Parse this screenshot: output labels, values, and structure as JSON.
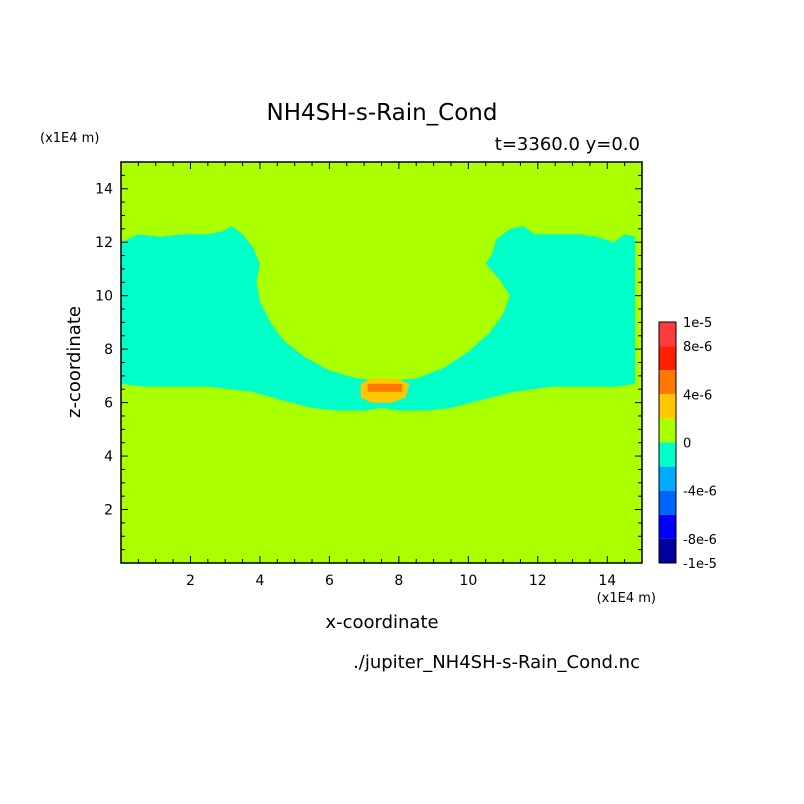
{
  "figure": {
    "subtitle": "t=3360.0 y=0.0",
    "x_scale_label": "(x1E4 m)",
    "y_scale_label": "(x1E4 m)",
    "source_file": "./jupiter_NH4SH-s-Rain_Cond.nc"
  },
  "chart_data": {
    "type": "heatmap",
    "title": "NH4SH-s-Rain_Cond",
    "xlabel": "x-coordinate",
    "ylabel": "z-coordinate",
    "xlim": [
      0,
      15
    ],
    "ylim": [
      0,
      15
    ],
    "x_ticks": [
      "2",
      "4",
      "6",
      "8",
      "10",
      "12",
      "14"
    ],
    "y_ticks": [
      "2",
      "4",
      "6",
      "8",
      "10",
      "12",
      "14"
    ],
    "background_value": 0,
    "regions": [
      {
        "value_level": "-2e-6",
        "color": "#00FFC8",
        "description_shape": "negative band",
        "polygon": [
          [
            0,
            6.7
          ],
          [
            0.7,
            6.6
          ],
          [
            2.5,
            6.6
          ],
          [
            3.8,
            6.4
          ],
          [
            4.6,
            6.1
          ],
          [
            5.5,
            5.8
          ],
          [
            6.2,
            5.7
          ],
          [
            7,
            5.7
          ],
          [
            7.5,
            5.8
          ],
          [
            8,
            5.7
          ],
          [
            8.8,
            5.7
          ],
          [
            9.5,
            5.8
          ],
          [
            10.4,
            6.1
          ],
          [
            11.3,
            6.4
          ],
          [
            12.4,
            6.6
          ],
          [
            14.3,
            6.6
          ],
          [
            14.8,
            6.7
          ],
          [
            14.8,
            12.2
          ],
          [
            14.5,
            12.3
          ],
          [
            14.2,
            12.0
          ],
          [
            13.7,
            12.2
          ],
          [
            13.2,
            12.3
          ],
          [
            12.5,
            12.3
          ],
          [
            11.9,
            12.3
          ],
          [
            11.6,
            12.6
          ],
          [
            11.2,
            12.5
          ],
          [
            10.8,
            12.1
          ],
          [
            10.7,
            11.6
          ],
          [
            10.5,
            11.2
          ],
          [
            10.9,
            10.6
          ],
          [
            11.2,
            10.0
          ],
          [
            11.0,
            9.3
          ],
          [
            10.6,
            8.6
          ],
          [
            10.0,
            7.9
          ],
          [
            9.3,
            7.3
          ],
          [
            8.5,
            6.9
          ],
          [
            7.6,
            6.8
          ],
          [
            6.8,
            6.9
          ],
          [
            6.0,
            7.2
          ],
          [
            5.3,
            7.7
          ],
          [
            4.7,
            8.3
          ],
          [
            4.3,
            9.0
          ],
          [
            4.0,
            9.8
          ],
          [
            3.9,
            10.5
          ],
          [
            4.0,
            11.2
          ],
          [
            3.8,
            11.8
          ],
          [
            3.5,
            12.3
          ],
          [
            3.2,
            12.6
          ],
          [
            2.9,
            12.4
          ],
          [
            2.5,
            12.3
          ],
          [
            1.8,
            12.3
          ],
          [
            1.1,
            12.2
          ],
          [
            0.5,
            12.3
          ],
          [
            0,
            12.0
          ]
        ]
      },
      {
        "value_level": "2e-6",
        "color": "#FFC800",
        "description_shape": "positive core",
        "polygon": [
          [
            6.9,
            6.2
          ],
          [
            7.2,
            6.0
          ],
          [
            7.8,
            6.0
          ],
          [
            8.2,
            6.2
          ],
          [
            8.3,
            6.7
          ],
          [
            7.9,
            6.9
          ],
          [
            7.2,
            6.9
          ],
          [
            6.9,
            6.7
          ]
        ]
      },
      {
        "value_level": "6e-6",
        "color": "#FF7800",
        "description_shape": "strong positive core",
        "polygon": [
          [
            7.1,
            6.4
          ],
          [
            8.1,
            6.4
          ],
          [
            8.1,
            6.7
          ],
          [
            7.1,
            6.7
          ]
        ]
      }
    ],
    "colorbar": {
      "labels": [
        "1e-5",
        "8e-6",
        "4e-6",
        "0",
        "-4e-6",
        "-8e-6",
        "-1e-5"
      ],
      "label_values": [
        1e-05,
        8e-06,
        4e-06,
        0,
        -4e-06,
        -8e-06,
        -1e-05
      ],
      "levels": [
        {
          "min": 8e-06,
          "max": 1e-05,
          "color": "#FF3C3C"
        },
        {
          "min": 6e-06,
          "max": 8e-06,
          "color": "#FF1E00"
        },
        {
          "min": 4e-06,
          "max": 6e-06,
          "color": "#FF7800"
        },
        {
          "min": 2e-06,
          "max": 4e-06,
          "color": "#FFC800"
        },
        {
          "min": 0,
          "max": 2e-06,
          "color": "#AAFF00"
        },
        {
          "min": -2e-06,
          "max": 0,
          "color": "#00FFC8"
        },
        {
          "min": -4e-06,
          "max": -2e-06,
          "color": "#00AAFF"
        },
        {
          "min": -6e-06,
          "max": -4e-06,
          "color": "#0064FF"
        },
        {
          "min": -8e-06,
          "max": -6e-06,
          "color": "#0000FF"
        },
        {
          "min": -1e-05,
          "max": -8e-06,
          "color": "#0000A0"
        }
      ],
      "range": [
        -1e-05,
        1e-05
      ]
    },
    "grid": false,
    "legend_position": "right"
  }
}
